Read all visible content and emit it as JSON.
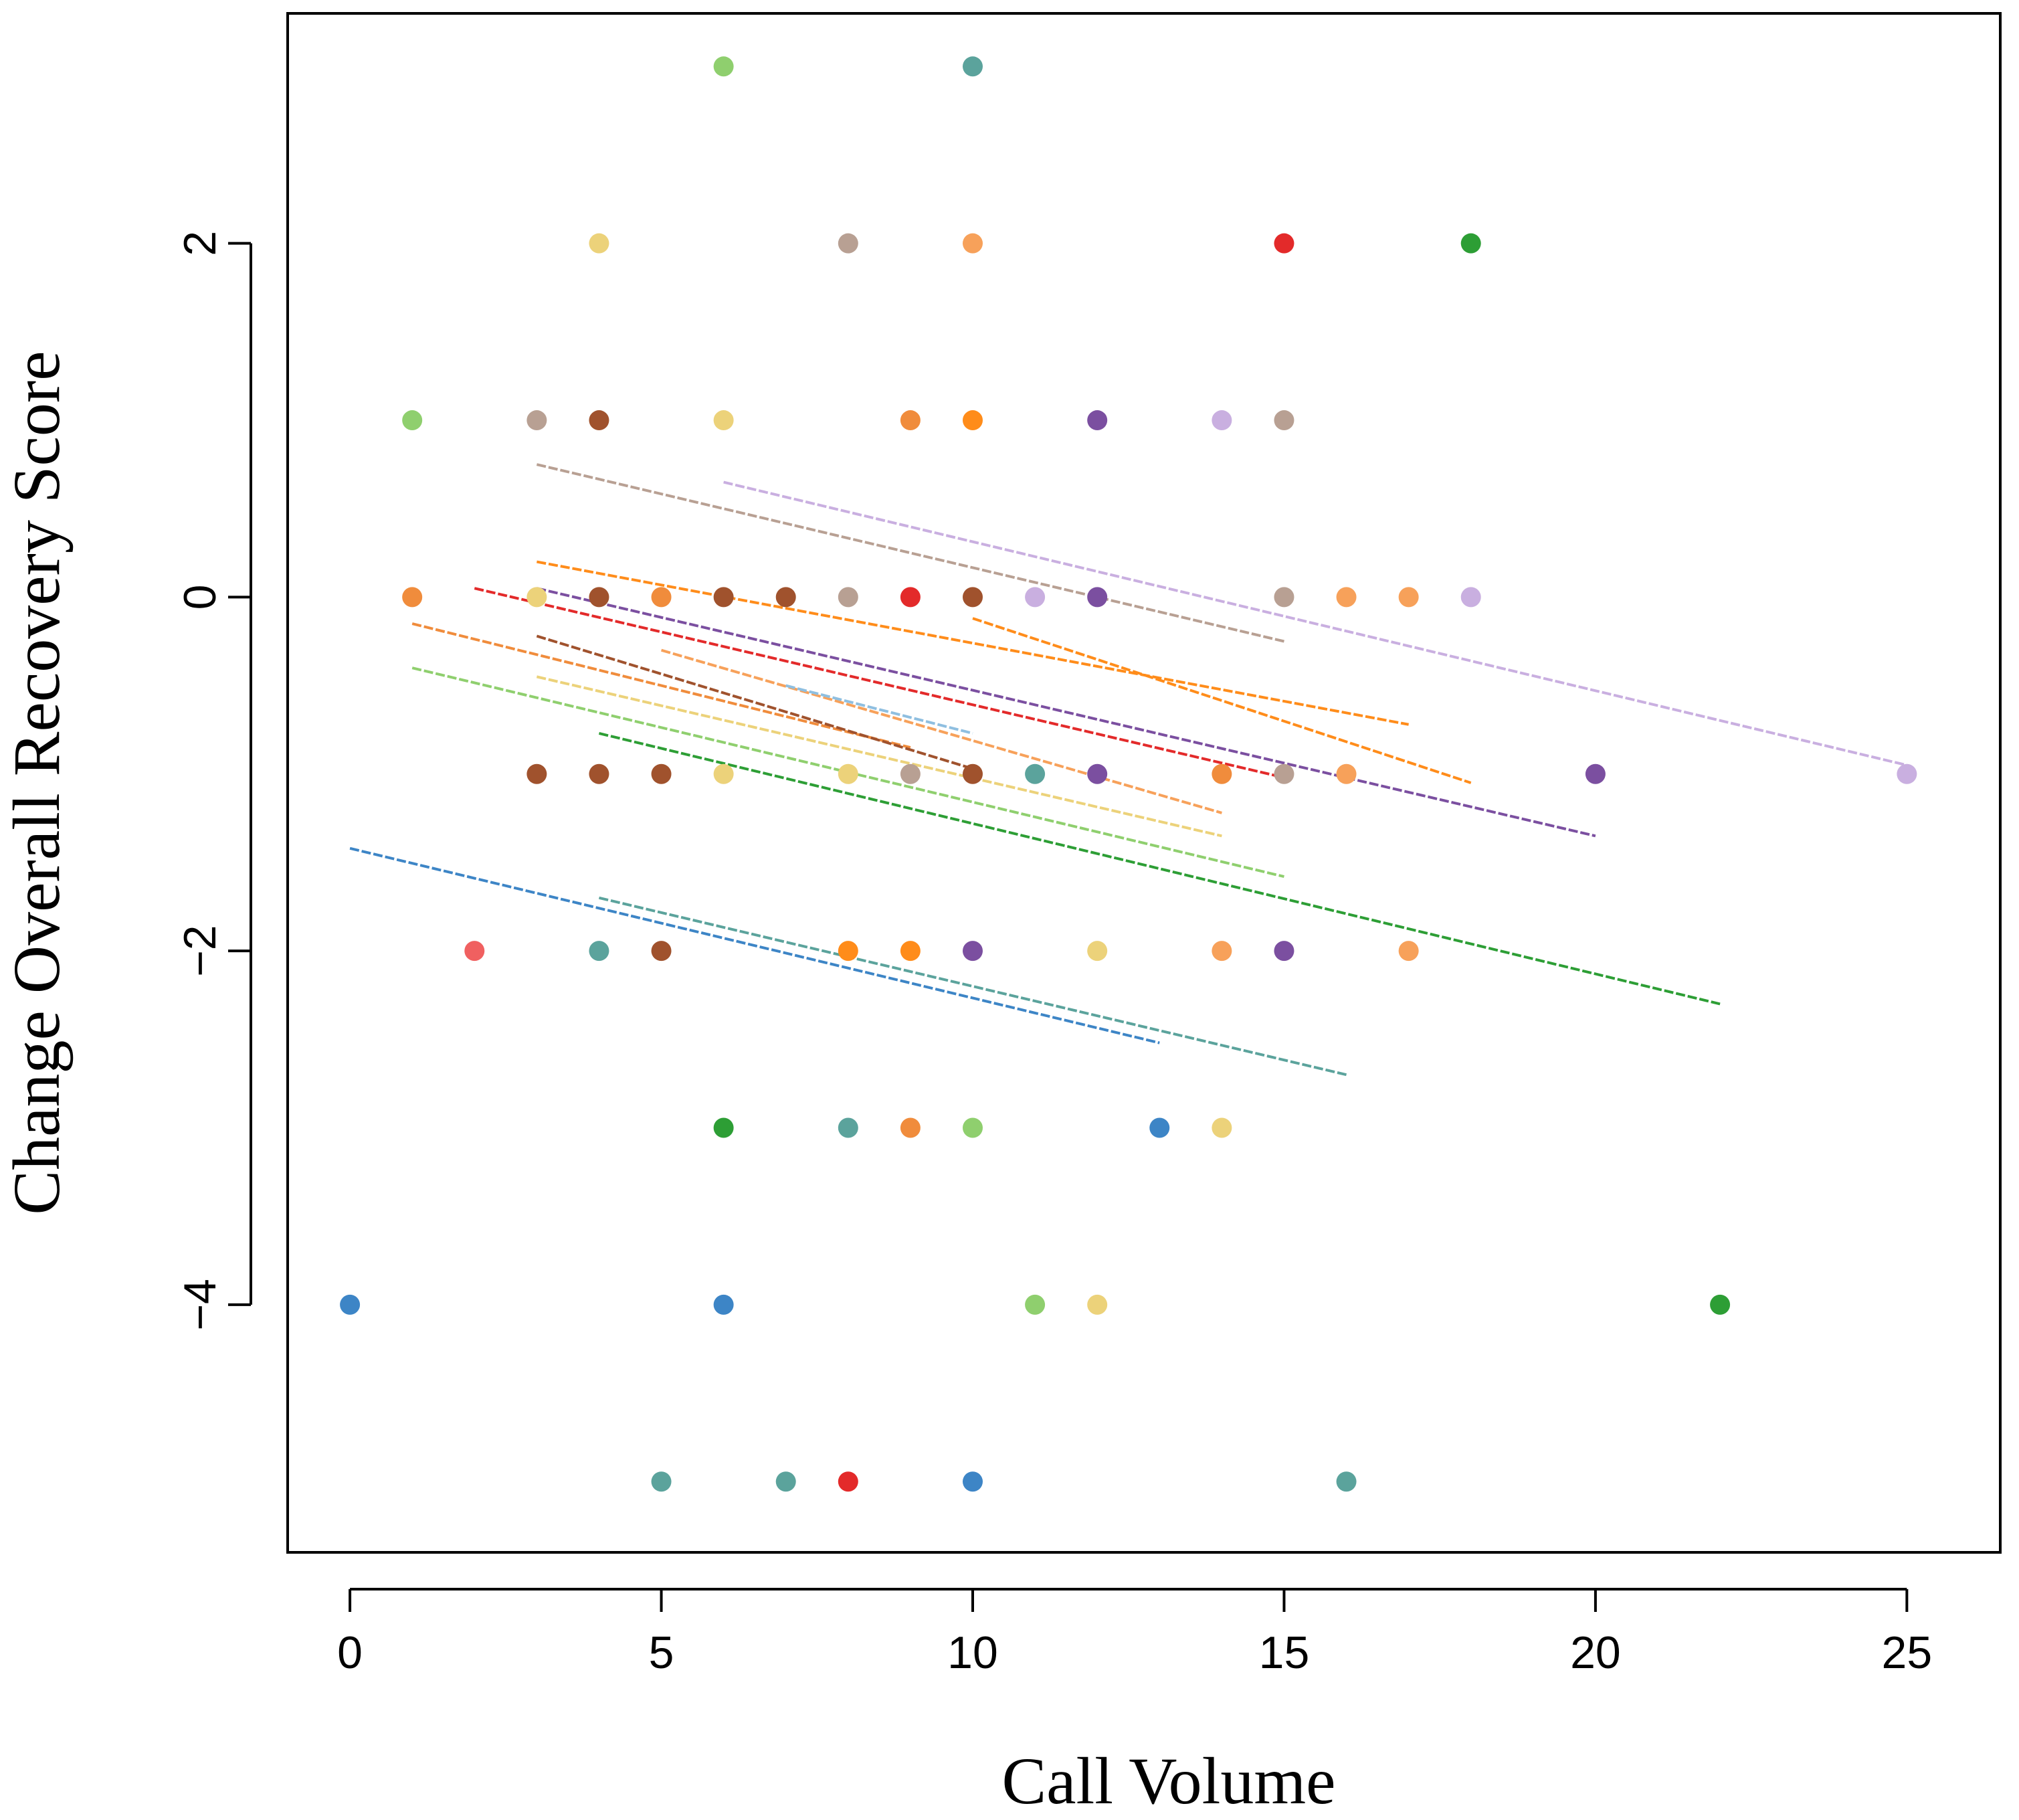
{
  "chart_data": {
    "type": "scatter",
    "title": "",
    "xlabel": "Call Volume",
    "ylabel": "Change Overall Recovery Score",
    "xlim": [
      -1,
      26.5
    ],
    "ylim": [
      -5.4,
      3.3
    ],
    "xticks": [
      0,
      5,
      10,
      15,
      20,
      25
    ],
    "yticks": [
      -4,
      -2,
      0,
      2
    ],
    "x_tick_labels": [
      "0",
      "5",
      "10",
      "15",
      "20",
      "25"
    ],
    "y_tick_labels": [
      "−4",
      "−2",
      "0",
      "2"
    ],
    "grid": false,
    "legend": "none",
    "points": [
      {
        "x": 6,
        "y": 3,
        "color": "#8fcf6e"
      },
      {
        "x": 10,
        "y": 3,
        "color": "#5ba39c"
      },
      {
        "x": 4,
        "y": 2,
        "color": "#ecd27a"
      },
      {
        "x": 8,
        "y": 2,
        "color": "#b8a093"
      },
      {
        "x": 10,
        "y": 2,
        "color": "#f7a15a"
      },
      {
        "x": 15,
        "y": 2,
        "color": "#e32a2a"
      },
      {
        "x": 18,
        "y": 2,
        "color": "#2d9e35"
      },
      {
        "x": 1,
        "y": 1,
        "color": "#8fcf6e"
      },
      {
        "x": 3,
        "y": 1,
        "color": "#b8a093"
      },
      {
        "x": 4,
        "y": 1,
        "color": "#a0522d"
      },
      {
        "x": 6,
        "y": 1,
        "color": "#ecd27a"
      },
      {
        "x": 9,
        "y": 1,
        "color": "#f08c3c"
      },
      {
        "x": 10,
        "y": 1,
        "color": "#ff8c1a"
      },
      {
        "x": 12,
        "y": 1,
        "color": "#7b4fa0"
      },
      {
        "x": 14,
        "y": 1,
        "color": "#c9afe0"
      },
      {
        "x": 15,
        "y": 1,
        "color": "#b8a093"
      },
      {
        "x": 1,
        "y": 0,
        "color": "#f08c3c"
      },
      {
        "x": 3,
        "y": 0,
        "color": "#ecd27a"
      },
      {
        "x": 4,
        "y": 0,
        "color": "#a0522d"
      },
      {
        "x": 5,
        "y": 0,
        "color": "#f08c3c"
      },
      {
        "x": 6,
        "y": 0,
        "color": "#a0522d"
      },
      {
        "x": 7,
        "y": 0,
        "color": "#a0522d"
      },
      {
        "x": 8,
        "y": 0,
        "color": "#b8a093"
      },
      {
        "x": 9,
        "y": 0,
        "color": "#e32a2a"
      },
      {
        "x": 10,
        "y": 0,
        "color": "#a0522d"
      },
      {
        "x": 11,
        "y": 0,
        "color": "#c9afe0"
      },
      {
        "x": 12,
        "y": 0,
        "color": "#7b4fa0"
      },
      {
        "x": 15,
        "y": 0,
        "color": "#b8a093"
      },
      {
        "x": 16,
        "y": 0,
        "color": "#f7a15a"
      },
      {
        "x": 17,
        "y": 0,
        "color": "#f7a15a"
      },
      {
        "x": 18,
        "y": 0,
        "color": "#c9afe0"
      },
      {
        "x": 3,
        "y": -1,
        "color": "#a0522d"
      },
      {
        "x": 4,
        "y": -1,
        "color": "#a0522d"
      },
      {
        "x": 5,
        "y": -1,
        "color": "#a0522d"
      },
      {
        "x": 6,
        "y": -1,
        "color": "#ecd27a"
      },
      {
        "x": 8,
        "y": -1,
        "color": "#ecd27a"
      },
      {
        "x": 9,
        "y": -1,
        "color": "#b8a093"
      },
      {
        "x": 10,
        "y": -1,
        "color": "#a0522d"
      },
      {
        "x": 11,
        "y": -1,
        "color": "#5ba39c"
      },
      {
        "x": 12,
        "y": -1,
        "color": "#7b4fa0"
      },
      {
        "x": 14,
        "y": -1,
        "color": "#f08c3c"
      },
      {
        "x": 15,
        "y": -1,
        "color": "#b8a093"
      },
      {
        "x": 16,
        "y": -1,
        "color": "#f7a15a"
      },
      {
        "x": 20,
        "y": -1,
        "color": "#7b4fa0"
      },
      {
        "x": 25,
        "y": -1,
        "color": "#c9afe0"
      },
      {
        "x": 2,
        "y": -2,
        "color": "#f06060"
      },
      {
        "x": 4,
        "y": -2,
        "color": "#5ba39c"
      },
      {
        "x": 5,
        "y": -2,
        "color": "#a0522d"
      },
      {
        "x": 8,
        "y": -2,
        "color": "#ff8c1a"
      },
      {
        "x": 9,
        "y": -2,
        "color": "#ff8c1a"
      },
      {
        "x": 10,
        "y": -2,
        "color": "#7b4fa0"
      },
      {
        "x": 12,
        "y": -2,
        "color": "#ecd27a"
      },
      {
        "x": 14,
        "y": -2,
        "color": "#f7a15a"
      },
      {
        "x": 15,
        "y": -2,
        "color": "#7b4fa0"
      },
      {
        "x": 17,
        "y": -2,
        "color": "#f7a15a"
      },
      {
        "x": 6,
        "y": -3,
        "color": "#2d9e35"
      },
      {
        "x": 8,
        "y": -3,
        "color": "#5ba39c"
      },
      {
        "x": 9,
        "y": -3,
        "color": "#f08c3c"
      },
      {
        "x": 10,
        "y": -3,
        "color": "#8fcf6e"
      },
      {
        "x": 13,
        "y": -3,
        "color": "#3d85c6"
      },
      {
        "x": 14,
        "y": -3,
        "color": "#ecd27a"
      },
      {
        "x": 0,
        "y": -4,
        "color": "#3d85c6"
      },
      {
        "x": 6,
        "y": -4,
        "color": "#3d85c6"
      },
      {
        "x": 11,
        "y": -4,
        "color": "#8fcf6e"
      },
      {
        "x": 12,
        "y": -4,
        "color": "#ecd27a"
      },
      {
        "x": 22,
        "y": -4,
        "color": "#2d9e35"
      },
      {
        "x": 5,
        "y": -5,
        "color": "#5ba39c"
      },
      {
        "x": 7,
        "y": -5,
        "color": "#5ba39c"
      },
      {
        "x": 8,
        "y": -5,
        "color": "#e32a2a"
      },
      {
        "x": 10,
        "y": -5,
        "color": "#3d85c6"
      },
      {
        "x": 16,
        "y": -5,
        "color": "#5ba39c"
      }
    ],
    "fit_lines": [
      {
        "x1": 3,
        "y1": 0.75,
        "x2": 15,
        "y2": -0.25,
        "color": "#b8a093"
      },
      {
        "x1": 6,
        "y1": 0.65,
        "x2": 25,
        "y2": -0.95,
        "color": "#c9afe0"
      },
      {
        "x1": 3,
        "y1": 0.2,
        "x2": 17,
        "y2": -0.72,
        "color": "#ff8c1a"
      },
      {
        "x1": 10,
        "y1": -0.12,
        "x2": 18,
        "y2": -1.05,
        "color": "#ff8c1a"
      },
      {
        "x1": 2,
        "y1": 0.05,
        "x2": 15,
        "y2": -1.02,
        "color": "#e32a2a"
      },
      {
        "x1": 3,
        "y1": 0.05,
        "x2": 20,
        "y2": -1.35,
        "color": "#7b4fa0"
      },
      {
        "x1": 1,
        "y1": -0.15,
        "x2": 9,
        "y2": -0.85,
        "color": "#f08c3c"
      },
      {
        "x1": 3,
        "y1": -0.22,
        "x2": 10,
        "y2": -0.97,
        "color": "#a0522d"
      },
      {
        "x1": 5,
        "y1": -0.3,
        "x2": 14,
        "y2": -1.22,
        "color": "#f7a15a"
      },
      {
        "x1": 7,
        "y1": -0.5,
        "x2": 10,
        "y2": -0.77,
        "color": "#8fbfe0"
      },
      {
        "x1": 3,
        "y1": -0.45,
        "x2": 14,
        "y2": -1.35,
        "color": "#ecd27a"
      },
      {
        "x1": 1,
        "y1": -0.4,
        "x2": 15,
        "y2": -1.58,
        "color": "#8fcf6e"
      },
      {
        "x1": 4,
        "y1": -0.77,
        "x2": 22,
        "y2": -2.3,
        "color": "#2d9e35"
      },
      {
        "x1": 0,
        "y1": -1.42,
        "x2": 13,
        "y2": -2.52,
        "color": "#3d85c6"
      },
      {
        "x1": 4,
        "y1": -1.7,
        "x2": 16,
        "y2": -2.7,
        "color": "#5ba39c"
      }
    ]
  }
}
